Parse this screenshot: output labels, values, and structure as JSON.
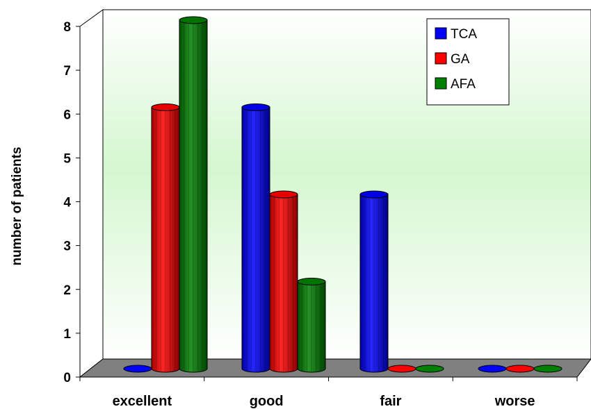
{
  "chart_data": {
    "type": "bar",
    "categories": [
      "excellent",
      "good",
      "fair",
      "worse"
    ],
    "series": [
      {
        "name": "TCA",
        "values": [
          0,
          6,
          4,
          0
        ],
        "color": "#0000ff"
      },
      {
        "name": "GA",
        "values": [
          6,
          4,
          0,
          0
        ],
        "color": "#ff0000"
      },
      {
        "name": "AFA",
        "values": [
          8,
          2,
          0,
          0
        ],
        "color": "#008000"
      }
    ],
    "ylabel": "number of patients",
    "ylim": [
      0,
      8
    ],
    "yticks": [
      0,
      1,
      2,
      3,
      4,
      5,
      6,
      7,
      8
    ],
    "legend": "top-right",
    "grid": false
  }
}
